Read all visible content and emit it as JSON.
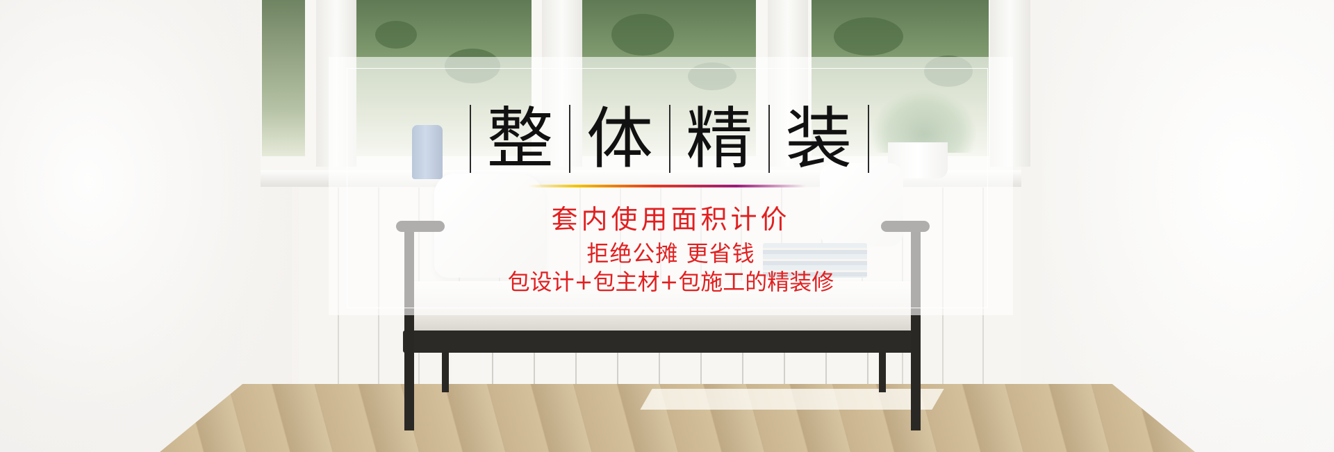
{
  "banner": {
    "title_chars": [
      "整",
      "体",
      "精",
      "装"
    ],
    "subtitle_1": "套内使用面积计价",
    "subtitle_2": "拒绝公摊  更省钱",
    "subtitle_3": "包设计+包主材+包施工的精装修"
  },
  "colors": {
    "title": "#111111",
    "accent_red": "#e21f1f",
    "rule_start": "#f2c200",
    "rule_mid": "#e43a1c",
    "rule_end": "#9b1a7a"
  }
}
